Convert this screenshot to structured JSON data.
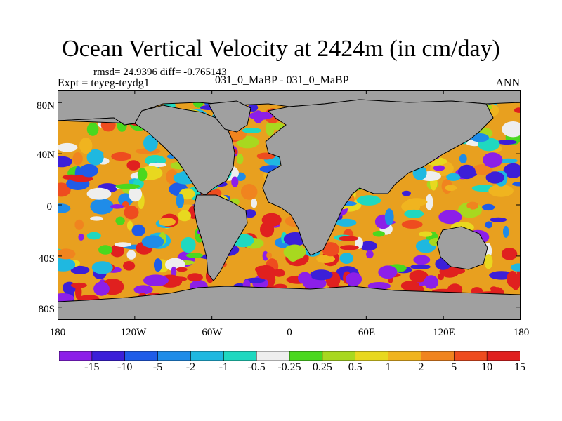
{
  "title": "Ocean Vertical Velocity at 2424m (in cm/day)",
  "stats": "rmsd= 24.9396 diff= -0.765143",
  "expt": "Expt = teyeg-teydg1",
  "run": "031_0_MaBP - 031_0_MaBP",
  "season": "ANN",
  "y_ticks": [
    "80N",
    "40N",
    "0",
    "40S",
    "80S"
  ],
  "x_ticks": [
    "180",
    "120W",
    "60W",
    "0",
    "60E",
    "120E",
    "180"
  ],
  "land_color": "#a0a0a0",
  "colorbar": {
    "colors": [
      "#8c1fe8",
      "#3c1fd8",
      "#1f5ce8",
      "#1f8ce8",
      "#1fb8e0",
      "#1fd8c0",
      "#eeeeee",
      "#4ad81f",
      "#a8d81f",
      "#e8d81f",
      "#f0b41f",
      "#f0841f",
      "#ee4c1f",
      "#e0201f"
    ],
    "labels": [
      "-15",
      "-10",
      "-5",
      "-2",
      "-1",
      "-0.5",
      "-0.25",
      "0.25",
      "0.5",
      "1",
      "2",
      "5",
      "10",
      "15"
    ]
  }
}
